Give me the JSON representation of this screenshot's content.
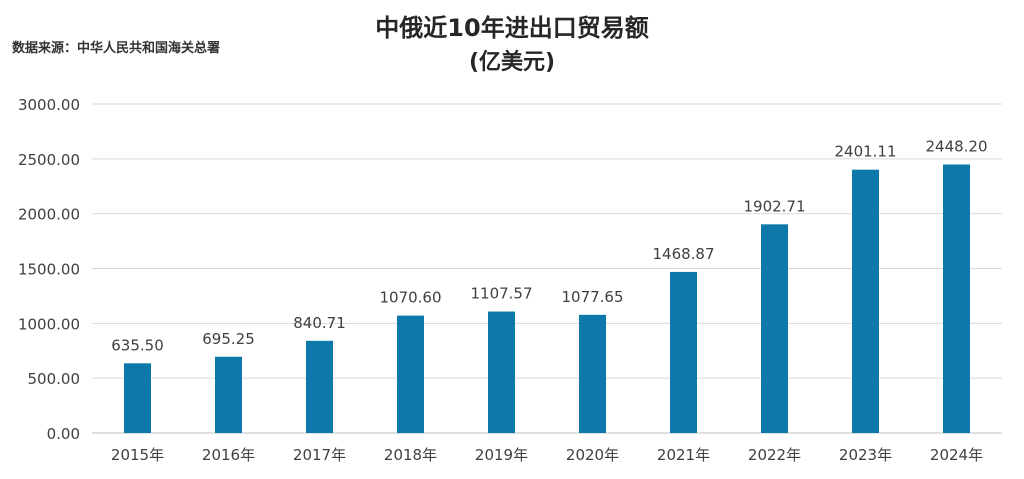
{
  "chart_data": {
    "type": "bar",
    "title": "中俄近10年进出口贸易额",
    "subtitle": "(亿美元)",
    "source": "数据来源：中华人民共和国海关总署",
    "categories": [
      "2015年",
      "2016年",
      "2017年",
      "2018年",
      "2019年",
      "2020年",
      "2021年",
      "2022年",
      "2023年",
      "2024年"
    ],
    "values": [
      635.5,
      695.25,
      840.71,
      1070.6,
      1107.57,
      1077.65,
      1468.87,
      1902.71,
      2401.11,
      2448.2
    ],
    "value_labels": [
      "635.50",
      "695.25",
      "840.71",
      "1070.60",
      "1107.57",
      "1077.65",
      "1468.87",
      "1902.71",
      "2401.11",
      "2448.20"
    ],
    "y_ticks": [
      0,
      500,
      1000,
      1500,
      2000,
      2500,
      3000
    ],
    "y_tick_labels": [
      "0.00",
      "500.00",
      "1000.00",
      "1500.00",
      "2000.00",
      "2500.00",
      "3000.00"
    ],
    "ylim": [
      0,
      3000
    ],
    "xlabel": "",
    "ylabel": "",
    "grid": true,
    "legend": "none",
    "bar_color": "#0d78aa",
    "grid_color": "#d9d9d9"
  }
}
